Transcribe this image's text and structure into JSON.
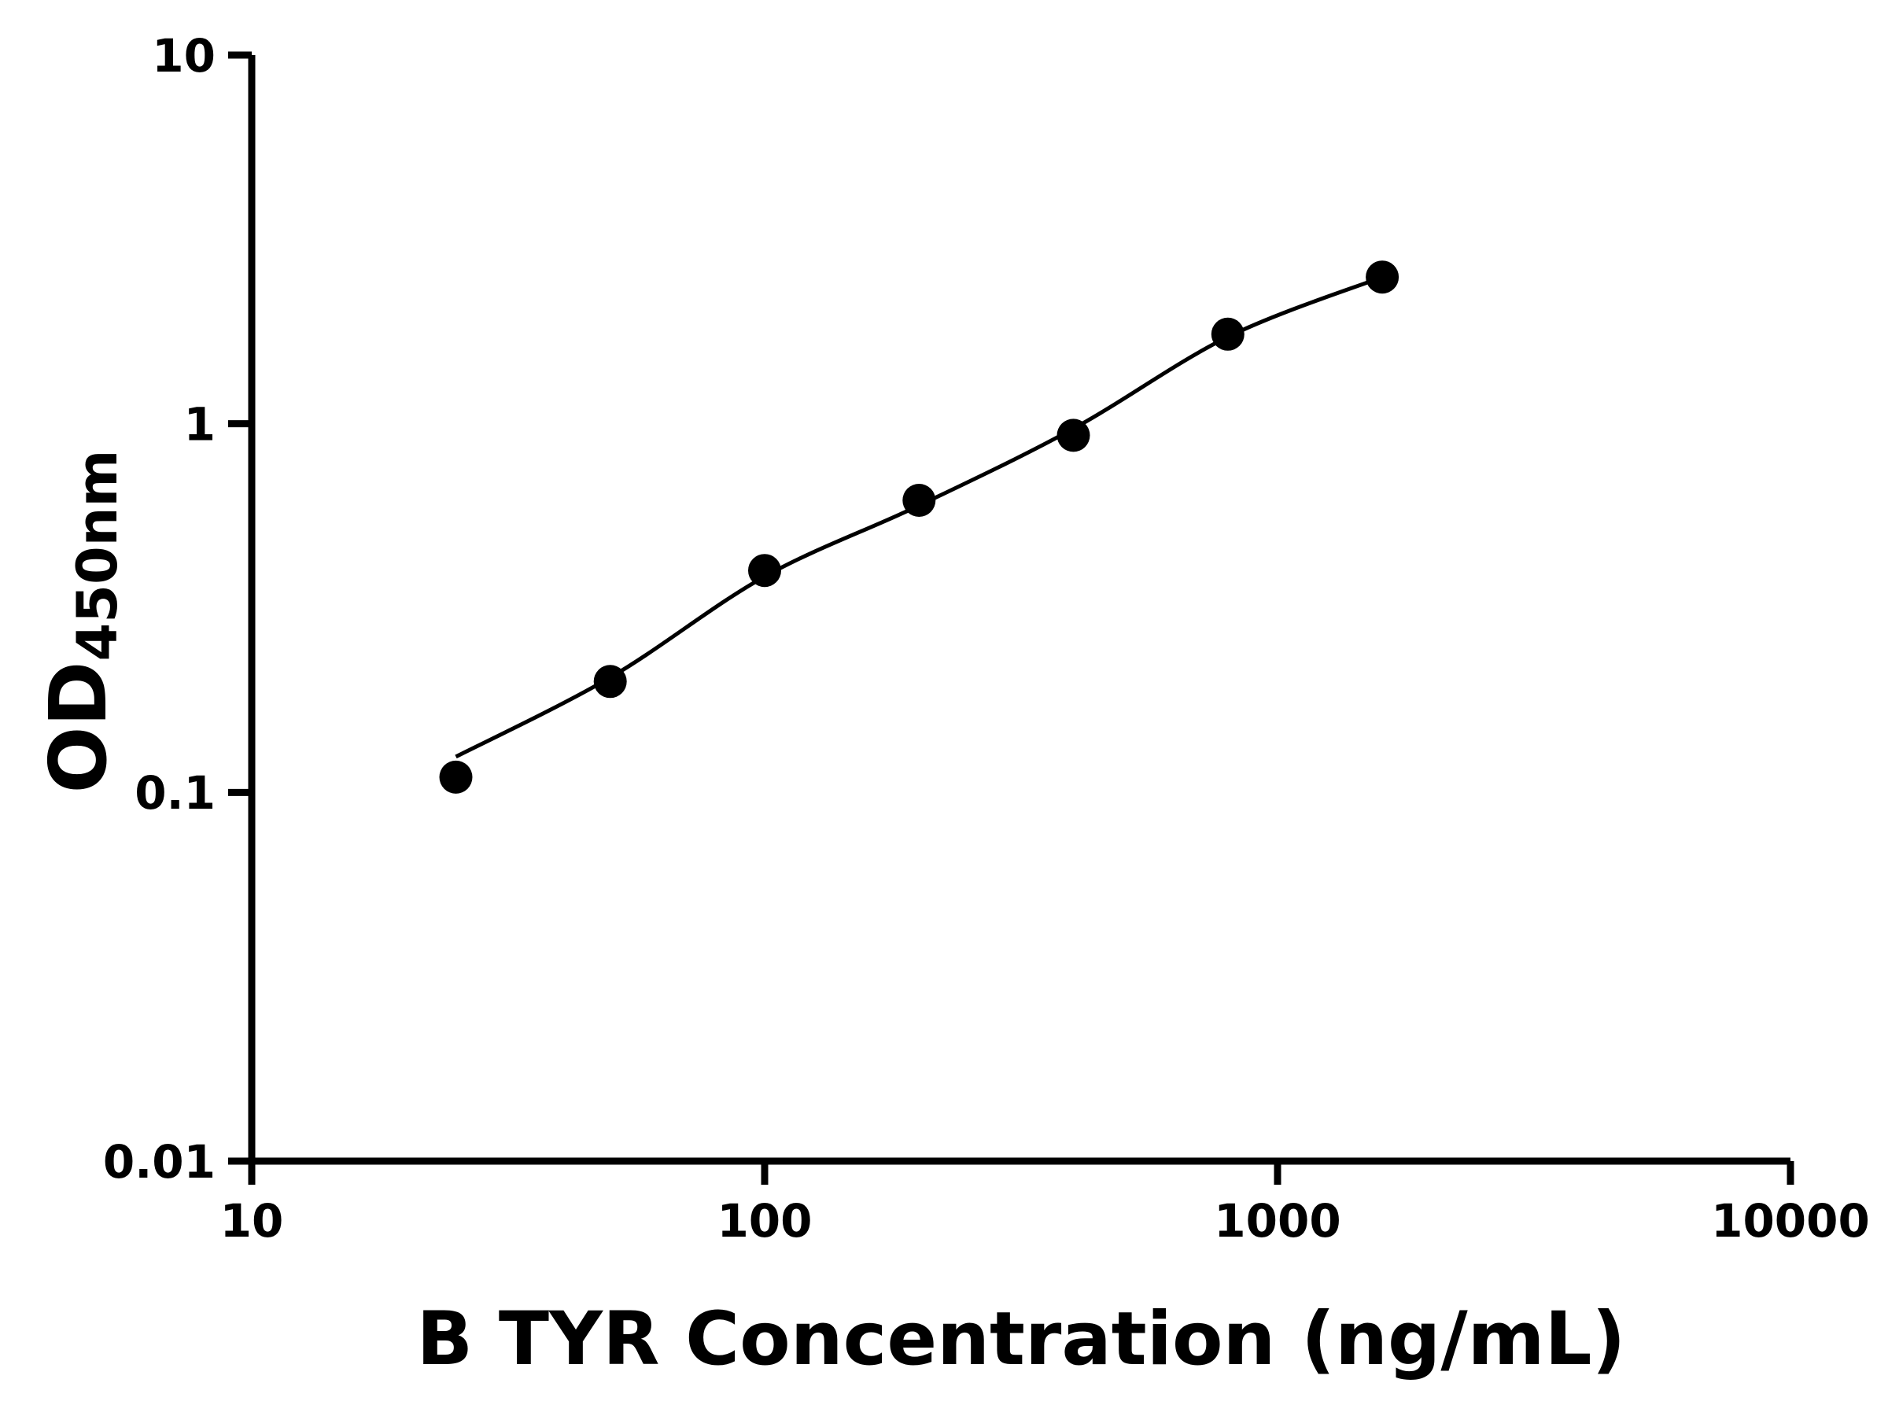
{
  "chart_data": {
    "type": "scatter",
    "title": "",
    "xlabel": "B TYR Concentration (ng/mL)",
    "ylabel_main": "OD",
    "ylabel_sub": "450nm",
    "x_scale": "log",
    "y_scale": "log",
    "xlim": [
      10,
      10000
    ],
    "ylim": [
      0.01,
      10
    ],
    "x_ticks": [
      10,
      100,
      1000,
      10000
    ],
    "x_tick_labels": [
      "10",
      "100",
      "1000",
      "10000"
    ],
    "y_ticks": [
      10,
      1,
      0.1,
      0.01
    ],
    "y_tick_labels": [
      "10",
      "1",
      "0.1",
      "0.01"
    ],
    "grid": false,
    "legend": "none",
    "background": "#ffffff",
    "axis_color": "#000000",
    "marker_color": "#000000",
    "marker_shape": "circle",
    "marker_radius_px": 21,
    "line_color": "#000000",
    "points": {
      "x": [
        25,
        50,
        100,
        200,
        400,
        800,
        1600
      ],
      "y": [
        0.11,
        0.2,
        0.4,
        0.62,
        0.93,
        1.75,
        2.5
      ]
    },
    "trend_line": {
      "x": [
        25,
        50,
        100,
        200,
        400,
        800,
        1600
      ],
      "y": [
        0.125,
        0.205,
        0.385,
        0.6,
        0.97,
        1.72,
        2.5
      ]
    }
  }
}
